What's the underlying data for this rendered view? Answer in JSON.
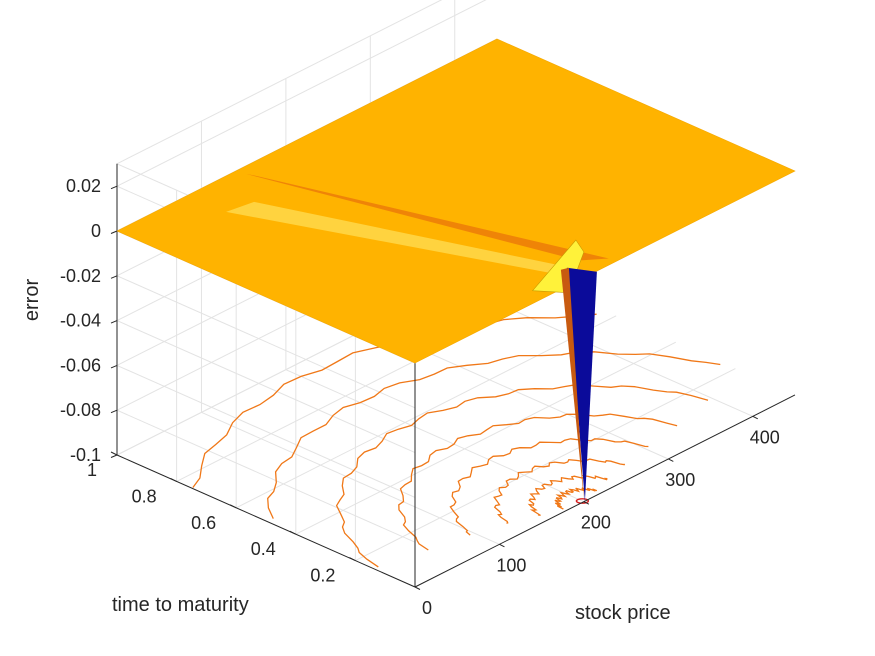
{
  "chart_data": {
    "type": "surface3d",
    "title": "",
    "xlabel": "stock price",
    "ylabel": "time to maturity",
    "zlabel": "error",
    "xlim": [
      0,
      450
    ],
    "ylim": [
      0,
      1
    ],
    "zlim": [
      -0.1,
      0.03
    ],
    "x_ticks": [
      0,
      100,
      200,
      300,
      400
    ],
    "x_tick_labels": [
      "0",
      "100",
      "200",
      "300",
      "400"
    ],
    "y_ticks": [
      0.2,
      0.4,
      0.6,
      0.8,
      1
    ],
    "y_tick_labels": [
      "0.2",
      "0.4",
      "0.6",
      "0.8",
      "1"
    ],
    "z_ticks": [
      0.02,
      0,
      -0.02,
      -0.04,
      -0.06,
      -0.08,
      -0.1
    ],
    "z_tick_labels": [
      "0.02",
      "0",
      "-0.02",
      "-0.04",
      "-0.06",
      "-0.08",
      "-0.1"
    ],
    "grid": true,
    "surface": {
      "baseline_error": 0,
      "strike_price": 200,
      "peak_error": 0.0,
      "peak_at": {
        "stock_price": 200,
        "time_to_maturity": 0.02
      },
      "min_error": -0.1,
      "min_at": {
        "stock_price": 200,
        "time_to_maturity": 0.0
      }
    },
    "contours": {
      "projected_on": "z-floor",
      "center_stock_price": 200,
      "center_time": 0.0
    },
    "colors": {
      "surface_flat": "#FFB300",
      "surface_ridge": "#E8700A",
      "peak": "#FFF23A",
      "trough": "#0B0B9A",
      "contour": "#F07818",
      "contour_center": "#D62020",
      "grid": "#E3E3E3",
      "axis": "#262626"
    }
  }
}
